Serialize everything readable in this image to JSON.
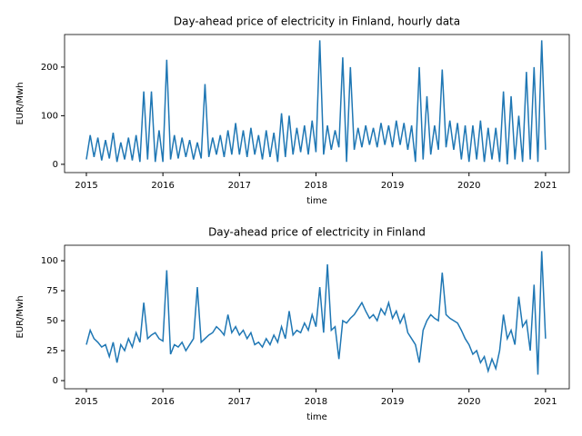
{
  "chart_data": [
    {
      "type": "line",
      "title": "Day-ahead price of electricity in Finland, hourly data",
      "xlabel": "time",
      "ylabel": "EUR/Mwh",
      "xlim": [
        2014.715,
        2021.31
      ],
      "xticks": [
        2015,
        2016,
        2017,
        2018,
        2019,
        2020,
        2021
      ],
      "ylim": [
        -17,
        267
      ],
      "yticks": [
        0,
        100,
        200
      ],
      "x": [
        2015.0,
        2015.05,
        2015.1,
        2015.15,
        2015.2,
        2015.25,
        2015.3,
        2015.35,
        2015.4,
        2015.45,
        2015.5,
        2015.55,
        2015.6,
        2015.65,
        2015.7,
        2015.75,
        2015.8,
        2015.85,
        2015.9,
        2015.95,
        2016.0,
        2016.05,
        2016.1,
        2016.15,
        2016.2,
        2016.25,
        2016.3,
        2016.35,
        2016.4,
        2016.45,
        2016.5,
        2016.55,
        2016.6,
        2016.65,
        2016.7,
        2016.75,
        2016.8,
        2016.85,
        2016.9,
        2016.95,
        2017.0,
        2017.05,
        2017.1,
        2017.15,
        2017.2,
        2017.25,
        2017.3,
        2017.35,
        2017.4,
        2017.45,
        2017.5,
        2017.55,
        2017.6,
        2017.65,
        2017.7,
        2017.75,
        2017.8,
        2017.85,
        2017.9,
        2017.95,
        2018.0,
        2018.05,
        2018.1,
        2018.15,
        2018.2,
        2018.25,
        2018.3,
        2018.35,
        2018.4,
        2018.45,
        2018.5,
        2018.55,
        2018.6,
        2018.65,
        2018.7,
        2018.75,
        2018.8,
        2018.85,
        2018.9,
        2018.95,
        2019.0,
        2019.05,
        2019.1,
        2019.15,
        2019.2,
        2019.25,
        2019.3,
        2019.35,
        2019.4,
        2019.45,
        2019.5,
        2019.55,
        2019.6,
        2019.65,
        2019.7,
        2019.75,
        2019.8,
        2019.85,
        2019.9,
        2019.95,
        2020.0,
        2020.05,
        2020.1,
        2020.15,
        2020.2,
        2020.25,
        2020.3,
        2020.35,
        2020.4,
        2020.45,
        2020.5,
        2020.55,
        2020.6,
        2020.65,
        2020.7,
        2020.75,
        2020.8,
        2020.85,
        2020.9,
        2020.95,
        2021.0
      ],
      "series": [
        {
          "color": "#1f77b4",
          "values": [
            10,
            60,
            15,
            55,
            8,
            50,
            12,
            65,
            5,
            45,
            10,
            55,
            8,
            60,
            5,
            150,
            10,
            150,
            5,
            70,
            5,
            215,
            10,
            60,
            12,
            55,
            15,
            50,
            10,
            45,
            12,
            165,
            15,
            55,
            20,
            60,
            15,
            70,
            20,
            85,
            20,
            70,
            15,
            75,
            20,
            60,
            10,
            70,
            15,
            65,
            5,
            105,
            15,
            100,
            20,
            75,
            25,
            80,
            20,
            90,
            25,
            255,
            20,
            80,
            30,
            70,
            35,
            220,
            5,
            200,
            30,
            75,
            35,
            80,
            40,
            75,
            35,
            85,
            40,
            80,
            35,
            90,
            40,
            85,
            30,
            80,
            5,
            200,
            10,
            140,
            20,
            80,
            30,
            195,
            35,
            90,
            30,
            85,
            10,
            80,
            5,
            80,
            10,
            90,
            5,
            75,
            10,
            75,
            5,
            150,
            0,
            140,
            10,
            100,
            5,
            190,
            10,
            200,
            5,
            255,
            30
          ]
        }
      ]
    },
    {
      "type": "line",
      "title": "Day-ahead price of electricity in Finland",
      "xlabel": "time",
      "ylabel": "EUR/Mwh",
      "xlim": [
        2014.715,
        2021.31
      ],
      "xticks": [
        2015,
        2016,
        2017,
        2018,
        2019,
        2020,
        2021
      ],
      "ylim": [
        -6.8,
        112.9
      ],
      "yticks": [
        0,
        25,
        50,
        75,
        100
      ],
      "x": [
        2015.0,
        2015.05,
        2015.1,
        2015.15,
        2015.2,
        2015.25,
        2015.3,
        2015.35,
        2015.4,
        2015.45,
        2015.5,
        2015.55,
        2015.6,
        2015.65,
        2015.7,
        2015.75,
        2015.8,
        2015.85,
        2015.9,
        2015.95,
        2016.0,
        2016.05,
        2016.1,
        2016.15,
        2016.2,
        2016.25,
        2016.3,
        2016.35,
        2016.4,
        2016.45,
        2016.5,
        2016.55,
        2016.6,
        2016.65,
        2016.7,
        2016.75,
        2016.8,
        2016.85,
        2016.9,
        2016.95,
        2017.0,
        2017.05,
        2017.1,
        2017.15,
        2017.2,
        2017.25,
        2017.3,
        2017.35,
        2017.4,
        2017.45,
        2017.5,
        2017.55,
        2017.6,
        2017.65,
        2017.7,
        2017.75,
        2017.8,
        2017.85,
        2017.9,
        2017.95,
        2018.0,
        2018.05,
        2018.1,
        2018.15,
        2018.2,
        2018.25,
        2018.3,
        2018.35,
        2018.4,
        2018.45,
        2018.5,
        2018.55,
        2018.6,
        2018.65,
        2018.7,
        2018.75,
        2018.8,
        2018.85,
        2018.9,
        2018.95,
        2019.0,
        2019.05,
        2019.1,
        2019.15,
        2019.2,
        2019.25,
        2019.3,
        2019.35,
        2019.4,
        2019.45,
        2019.5,
        2019.55,
        2019.6,
        2019.65,
        2019.7,
        2019.75,
        2019.8,
        2019.85,
        2019.9,
        2019.95,
        2020.0,
        2020.05,
        2020.1,
        2020.15,
        2020.2,
        2020.25,
        2020.3,
        2020.35,
        2020.4,
        2020.45,
        2020.5,
        2020.55,
        2020.6,
        2020.65,
        2020.7,
        2020.75,
        2020.8,
        2020.85,
        2020.9,
        2020.95,
        2021.0
      ],
      "series": [
        {
          "color": "#1f77b4",
          "values": [
            30,
            42,
            35,
            32,
            28,
            30,
            20,
            32,
            15,
            30,
            25,
            35,
            28,
            40,
            32,
            65,
            35,
            38,
            40,
            35,
            33,
            92,
            22,
            30,
            28,
            32,
            25,
            30,
            35,
            78,
            32,
            35,
            38,
            40,
            45,
            42,
            38,
            55,
            40,
            45,
            38,
            42,
            35,
            40,
            30,
            32,
            28,
            35,
            30,
            38,
            32,
            45,
            35,
            58,
            38,
            42,
            40,
            48,
            42,
            55,
            45,
            78,
            40,
            97,
            42,
            45,
            18,
            50,
            48,
            52,
            55,
            60,
            65,
            58,
            52,
            55,
            50,
            60,
            55,
            65,
            52,
            58,
            48,
            55,
            40,
            35,
            30,
            15,
            42,
            50,
            55,
            52,
            50,
            90,
            55,
            52,
            50,
            48,
            42,
            35,
            30,
            22,
            25,
            15,
            20,
            8,
            18,
            10,
            25,
            55,
            35,
            42,
            30,
            70,
            45,
            50,
            25,
            80,
            5,
            108,
            35
          ]
        }
      ]
    }
  ]
}
